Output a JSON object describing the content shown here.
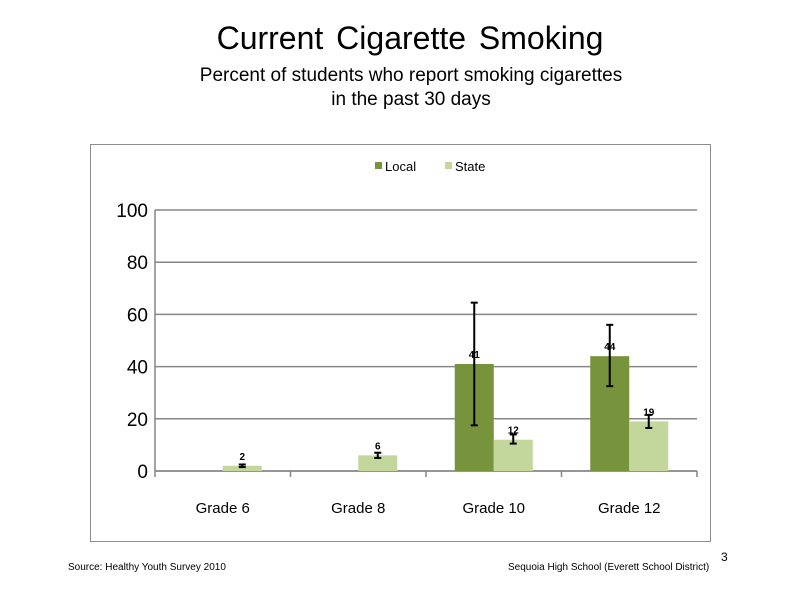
{
  "slide": {
    "title": "Current Cigarette Smoking",
    "subtitle_line1": "Percent of students who report smoking cigarettes",
    "subtitle_line2": "in the past 30 days",
    "footer_source": "Source: Healthy Youth Survey 2010",
    "footer_school": "Sequoia High School (Everett School District)",
    "page_number": "3"
  },
  "colors": {
    "local": "#77933c",
    "state": "#c3d69b",
    "gridline": "#868686",
    "error_bar": "#000000"
  },
  "chart_data": {
    "type": "bar",
    "title": "",
    "xlabel": "",
    "ylabel": "",
    "categories": [
      "Grade 6",
      "Grade 8",
      "Grade 10",
      "Grade 12"
    ],
    "ylim": [
      0,
      100
    ],
    "yticks": [
      0,
      20,
      40,
      60,
      80,
      100
    ],
    "grid": true,
    "legend_position": "top-center",
    "series": [
      {
        "name": "Local",
        "values": [
          null,
          null,
          41,
          44
        ],
        "labels": [
          "",
          "",
          "41",
          "44"
        ],
        "error_low": [
          null,
          null,
          17.5,
          32.5
        ],
        "error_high": [
          null,
          null,
          64.5,
          56
        ]
      },
      {
        "name": "State",
        "values": [
          2,
          6,
          12,
          19
        ],
        "labels": [
          "2",
          "6",
          "12",
          "19"
        ],
        "error_low": [
          1.5,
          5,
          10.5,
          16.5
        ],
        "error_high": [
          2.5,
          7,
          14,
          21.5
        ]
      }
    ]
  }
}
